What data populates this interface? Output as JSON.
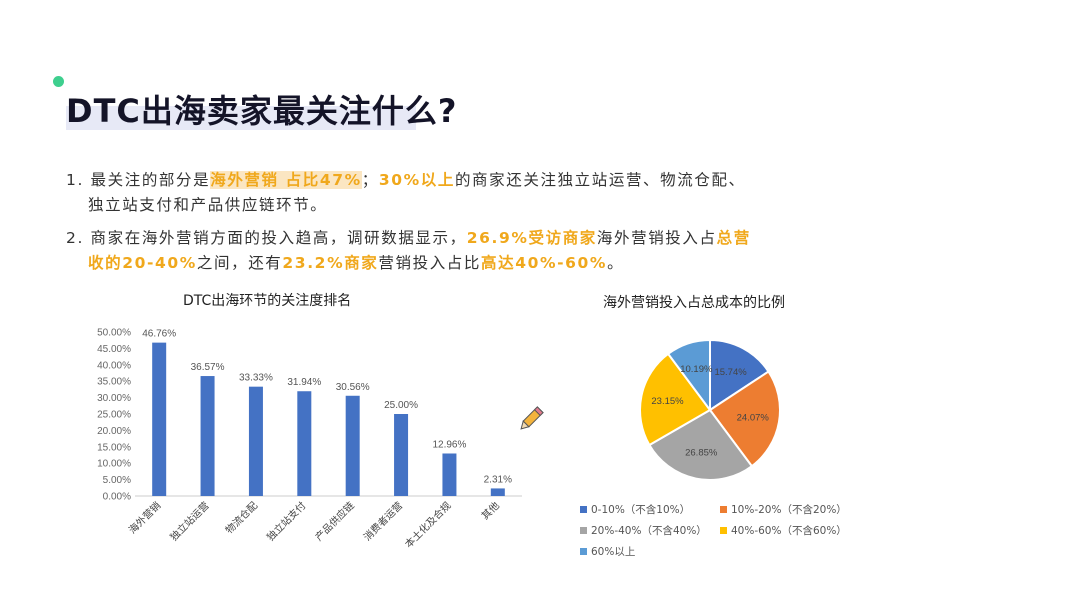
{
  "slide": {
    "title": "DTC出海卖家最关注什么?",
    "points": [
      {
        "parts": [
          {
            "text": "1. 最关注的部分是",
            "style": "plain"
          },
          {
            "text": "海外营销 占比47%",
            "style": "hl-bg"
          },
          {
            "text": "；",
            "style": "plain"
          },
          {
            "text": "30%以上",
            "style": "hl"
          },
          {
            "text": "的商家还关注独立站运营、物流仓配、",
            "style": "plain"
          }
        ],
        "cont": "独立站支付和产品供应链环节。"
      },
      {
        "parts": [
          {
            "text": "2. 商家在海外营销方面的投入趋高，调研数据显示，",
            "style": "plain"
          },
          {
            "text": "26.9%受访商家",
            "style": "hl"
          },
          {
            "text": "海外营销投入占",
            "style": "plain"
          },
          {
            "text": "总营",
            "style": "hl"
          }
        ],
        "cont_parts": [
          {
            "text": "收的20-40%",
            "style": "hl"
          },
          {
            "text": "之间，还有",
            "style": "plain"
          },
          {
            "text": "23.2%商家",
            "style": "hl"
          },
          {
            "text": "营销投入占比",
            "style": "plain"
          },
          {
            "text": "高达40%-60%",
            "style": "hl"
          },
          {
            "text": "。",
            "style": "plain"
          }
        ]
      }
    ]
  },
  "chart_data": [
    {
      "type": "bar",
      "title": "DTC出海环节的关注度排名",
      "categories": [
        "海外营销",
        "独立站运营",
        "物流仓配",
        "独立站支付",
        "产品供应链",
        "消费者运营",
        "本土化及合规",
        "其他"
      ],
      "values": [
        46.76,
        36.57,
        33.33,
        31.94,
        30.56,
        25.0,
        12.96,
        2.31
      ],
      "data_labels": [
        "46.76%",
        "36.57%",
        "33.33%",
        "31.94%",
        "30.56%",
        "25.00%",
        "12.96%",
        "2.31%"
      ],
      "ylim": [
        0,
        50
      ],
      "yticks": [
        "0.00%",
        "5.00%",
        "10.00%",
        "15.00%",
        "20.00%",
        "25.00%",
        "30.00%",
        "35.00%",
        "40.00%",
        "45.00%",
        "50.00%"
      ],
      "bar_color": "#4472c4"
    },
    {
      "type": "pie",
      "title": "海外营销投入占总成本的比例",
      "slices": [
        {
          "label": "0-10%（不含10%）",
          "value": 15.74,
          "display": "15.74%",
          "color": "#4472c4"
        },
        {
          "label": "10%-20%（不含20%）",
          "value": 24.07,
          "display": "24.07%",
          "color": "#ed7d31"
        },
        {
          "label": "20%-40%（不含40%）",
          "value": 26.85,
          "display": "26.85%",
          "color": "#a5a5a5"
        },
        {
          "label": "40%-60%（不含60%）",
          "value": 23.15,
          "display": "23.15%",
          "color": "#ffc000"
        },
        {
          "label": "60%以上",
          "value": 10.19,
          "display": "10.19%",
          "color": "#5b9bd5"
        }
      ],
      "legend_position": "bottom"
    }
  ]
}
